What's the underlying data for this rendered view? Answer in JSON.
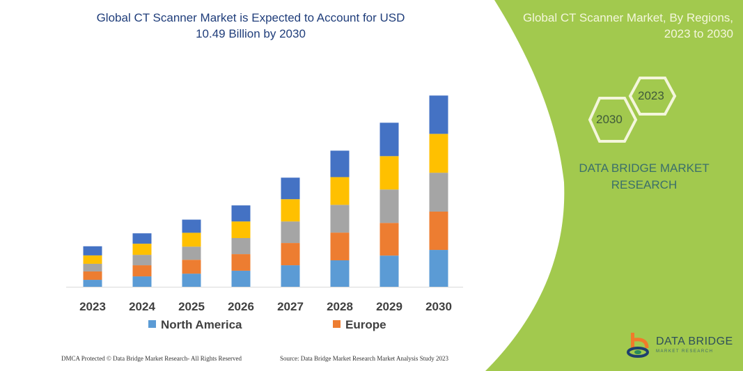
{
  "title": "Global CT Scanner Market is Expected to Account for USD 10.49 Billion by 2030",
  "side_panel": {
    "title": "Global CT Scanner Market, By Regions, 2023 to 2030",
    "hex_2023": "2023",
    "hex_2030": "2030",
    "brand": "DATA BRIDGE MARKET RESEARCH",
    "color": "#a2c94e"
  },
  "logo": {
    "name": "DATA BRIDGE",
    "sub": "MARKET RESEARCH"
  },
  "footer": {
    "left": "DMCA Protected © Data Bridge Market Research- All Rights Reserved",
    "right": "Source: Data Bridge Market Research Market Analysis Study 2023"
  },
  "chart_data": {
    "type": "bar",
    "stacked": true,
    "title": "Global CT Scanner Market is Expected to Account for USD 10.49 Billion by 2030",
    "categories": [
      "2023",
      "2024",
      "2025",
      "2026",
      "2027",
      "2028",
      "2029",
      "2030"
    ],
    "series": [
      {
        "name": "North America",
        "color": "#5b9bd5",
        "values": [
          0.38,
          0.57,
          0.72,
          0.88,
          1.18,
          1.45,
          1.71,
          2.02
        ]
      },
      {
        "name": "Europe",
        "color": "#ed7d31",
        "values": [
          0.46,
          0.61,
          0.76,
          0.91,
          1.22,
          1.52,
          1.79,
          2.1
        ]
      },
      {
        "color": "#a5a5a5",
        "values": [
          0.42,
          0.57,
          0.72,
          0.88,
          1.18,
          1.52,
          1.83,
          2.13
        ]
      },
      {
        "color": "#ffc000",
        "values": [
          0.46,
          0.61,
          0.76,
          0.91,
          1.22,
          1.52,
          1.83,
          2.13
        ]
      },
      {
        "color": "#4472c4",
        "values": [
          0.5,
          0.57,
          0.72,
          0.88,
          1.18,
          1.45,
          1.83,
          2.1
        ]
      }
    ],
    "ylim": [
      0,
      10.49
    ],
    "y_axis_visible": false,
    "grid": false,
    "legend": "bottom"
  }
}
